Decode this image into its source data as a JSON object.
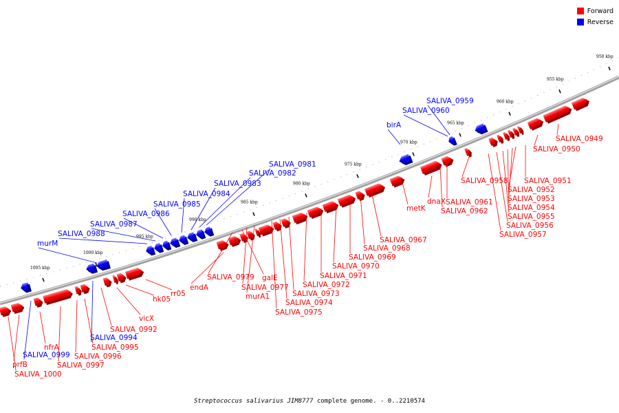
{
  "legend": {
    "forward_label": "Forward",
    "reverse_label": "Reverse",
    "forward_color": "#ff0000",
    "reverse_color": "#0000ff"
  },
  "caption": {
    "organism": "Streptococcus salivarius JIM8777",
    "suffix": "complete genome. - 0..2210574"
  },
  "track": {
    "start_kbp": 1008,
    "end_kbp": 948,
    "tick_labels": [
      "950 kbp",
      "955 kbp",
      "960 kbp",
      "965 kbp",
      "970 kbp",
      "975 kbp",
      "980 kbp",
      "985 kbp",
      "990 kbp",
      "995 kbp",
      "1000 kbp",
      "1005 kbp"
    ]
  },
  "genes": [
    {
      "name": "SALIVA_0949",
      "strand": "forward"
    },
    {
      "name": "SALIVA_0950",
      "strand": "forward"
    },
    {
      "name": "SALIVA_0951",
      "strand": "forward"
    },
    {
      "name": "SALIVA_0952",
      "strand": "forward"
    },
    {
      "name": "SALIVA_0953",
      "strand": "forward"
    },
    {
      "name": "SALIVA_0954",
      "strand": "forward"
    },
    {
      "name": "SALIVA_0955",
      "strand": "forward"
    },
    {
      "name": "SALIVA_0956",
      "strand": "forward"
    },
    {
      "name": "SALIVA_0957",
      "strand": "forward"
    },
    {
      "name": "SALIVA_0958",
      "strand": "forward"
    },
    {
      "name": "SALIVA_0959",
      "strand": "reverse"
    },
    {
      "name": "SALIVA_0960",
      "strand": "reverse"
    },
    {
      "name": "SALIVA_0961",
      "strand": "forward"
    },
    {
      "name": "SALIVA_0962",
      "strand": "forward"
    },
    {
      "name": "dnaX",
      "strand": "forward"
    },
    {
      "name": "birA",
      "strand": "reverse"
    },
    {
      "name": "metK",
      "strand": "forward"
    },
    {
      "name": "SALIVA_0967",
      "strand": "forward"
    },
    {
      "name": "SALIVA_0968",
      "strand": "forward"
    },
    {
      "name": "SALIVA_0969",
      "strand": "forward"
    },
    {
      "name": "SALIVA_0970",
      "strand": "forward"
    },
    {
      "name": "SALIVA_0971",
      "strand": "forward"
    },
    {
      "name": "SALIVA_0972",
      "strand": "forward"
    },
    {
      "name": "SALIVA_0973",
      "strand": "forward"
    },
    {
      "name": "SALIVA_0974",
      "strand": "forward"
    },
    {
      "name": "SALIVA_0975",
      "strand": "forward"
    },
    {
      "name": "murA1",
      "strand": "forward"
    },
    {
      "name": "SALIVA_0977",
      "strand": "forward"
    },
    {
      "name": "galE",
      "strand": "forward"
    },
    {
      "name": "SALIVA_0979",
      "strand": "forward"
    },
    {
      "name": "endA",
      "strand": "forward"
    },
    {
      "name": "SALIVA_0981",
      "strand": "reverse"
    },
    {
      "name": "SALIVA_0982",
      "strand": "reverse"
    },
    {
      "name": "SALIVA_0983",
      "strand": "reverse"
    },
    {
      "name": "SALIVA_0984",
      "strand": "reverse"
    },
    {
      "name": "SALIVA_0985",
      "strand": "reverse"
    },
    {
      "name": "SALIVA_0986",
      "strand": "reverse"
    },
    {
      "name": "SALIVA_0987",
      "strand": "reverse"
    },
    {
      "name": "SALIVA_0988",
      "strand": "reverse"
    },
    {
      "name": "murM",
      "strand": "reverse"
    },
    {
      "name": "rr05",
      "strand": "forward"
    },
    {
      "name": "hk05",
      "strand": "forward"
    },
    {
      "name": "vicX",
      "strand": "forward"
    },
    {
      "name": "SALIVA_0992",
      "strand": "forward"
    },
    {
      "name": "SALIVA_0994",
      "strand": "reverse"
    },
    {
      "name": "SALIVA_0995",
      "strand": "forward"
    },
    {
      "name": "SALIVA_0996",
      "strand": "forward"
    },
    {
      "name": "SALIVA_0997",
      "strand": "forward"
    },
    {
      "name": "nfrA",
      "strand": "forward"
    },
    {
      "name": "SALIVA_0999",
      "strand": "reverse"
    },
    {
      "name": "prfB",
      "strand": "forward"
    },
    {
      "name": "SALIVA_1000",
      "strand": "forward"
    }
  ]
}
